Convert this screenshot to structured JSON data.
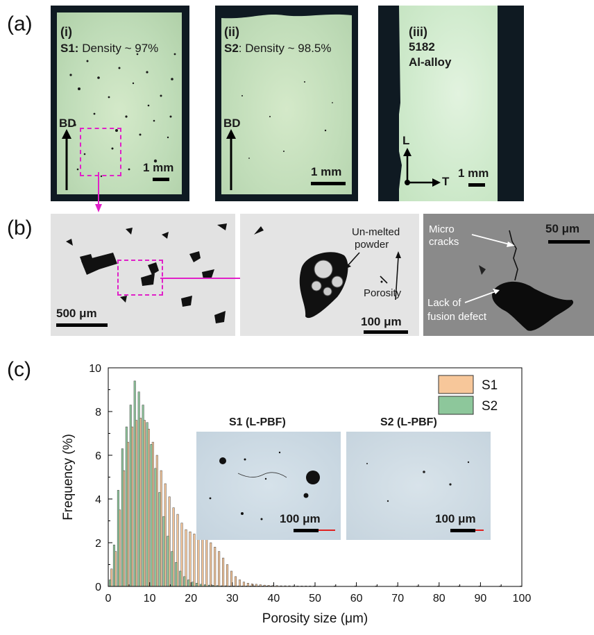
{
  "panel_a": {
    "label": "(a)",
    "img1": {
      "roman": "(i)",
      "sample": "S1:",
      "density": " Density ~ 97%",
      "bd": "BD",
      "scale": "1 mm"
    },
    "img2": {
      "roman": "(ii)",
      "sample": "S2",
      "density": ": Density ~ 98.5%",
      "bd": "BD",
      "scale": "1 mm"
    },
    "img3": {
      "roman": "(iii)",
      "line1": "5182",
      "line2": "Al-alloy",
      "axis_l": "L",
      "axis_t": "T",
      "scale": "1 mm"
    }
  },
  "panel_b": {
    "label": "(b)",
    "img1": {
      "scale": "500 μm"
    },
    "img2": {
      "unmelted": "Un-melted",
      "powder": "powder",
      "porosity": "Porosity",
      "scale": "100 μm"
    },
    "img3": {
      "micro": "Micro",
      "cracks": "cracks",
      "lack": "Lack of",
      "fusion": "fusion defect",
      "scale": "50 μm"
    }
  },
  "panel_c": {
    "label": "(c)",
    "inset1_title": "S1 (L-PBF)",
    "inset2_title": "S2 (L-PBF)",
    "inset_scale": "100 μm"
  },
  "colors": {
    "s1": "#f7c79a",
    "s2": "#8dc79b",
    "magenta": "#e020c8"
  },
  "chart_data": {
    "type": "bar",
    "xlabel": "Porosity size (μm)",
    "ylabel": "Frequency (%)",
    "xlim": [
      0,
      100
    ],
    "ylim": [
      0,
      10
    ],
    "xticks": [
      "0",
      "10",
      "20",
      "30",
      "40",
      "50",
      "60",
      "70",
      "80",
      "90",
      "100"
    ],
    "yticks": [
      "0",
      "2",
      "4",
      "6",
      "8",
      "10"
    ],
    "legend_position": "top-right",
    "series": [
      {
        "name": "S1",
        "color": "#f7c79a",
        "x": [
          1,
          2,
          3,
          4,
          5,
          6,
          7,
          8,
          9,
          10,
          11,
          12,
          13,
          14,
          15,
          16,
          17,
          18,
          19,
          20,
          21,
          22,
          23,
          24,
          25,
          26,
          27,
          28,
          29,
          30,
          31,
          32,
          33,
          34,
          35,
          36,
          37,
          38,
          39,
          40,
          41,
          42,
          43,
          44,
          45,
          46,
          47,
          48,
          49,
          50,
          55,
          60,
          65,
          70,
          75,
          80,
          85,
          90,
          95,
          100
        ],
        "y": [
          0.8,
          1.6,
          3.5,
          5.3,
          6.6,
          7.3,
          7.6,
          7.7,
          7.6,
          7.2,
          6.6,
          6.0,
          5.3,
          4.7,
          4.1,
          3.6,
          3.3,
          2.9,
          2.6,
          2.5,
          2.4,
          2.4,
          2.3,
          2.2,
          2.0,
          1.8,
          1.6,
          1.3,
          1.0,
          0.7,
          0.45,
          0.3,
          0.2,
          0.15,
          0.12,
          0.1,
          0.08,
          0.06,
          0.05,
          0.04,
          0.04,
          0.03,
          0.03,
          0.03,
          0.02,
          0.02,
          0.02,
          0.02,
          0.02,
          0.02,
          0.02,
          0.02,
          0.02,
          0.02,
          0.02,
          0.02,
          0.02,
          0.02,
          0.02,
          0.02
        ]
      },
      {
        "name": "S2",
        "color": "#8dc79b",
        "x": [
          1,
          2,
          3,
          4,
          5,
          6,
          7,
          8,
          9,
          10,
          11,
          12,
          13,
          14,
          15,
          16,
          17,
          18,
          19,
          20,
          21,
          22,
          23,
          24,
          25,
          26,
          27,
          28,
          29,
          30,
          31,
          32,
          33,
          34,
          35,
          36,
          37,
          38,
          39,
          40
        ],
        "y": [
          0.3,
          1.9,
          4.4,
          6.3,
          7.3,
          8.3,
          9.4,
          8.9,
          8.3,
          7.5,
          6.5,
          5.4,
          4.3,
          3.2,
          2.3,
          1.6,
          1.1,
          0.7,
          0.45,
          0.3,
          0.2,
          0.15,
          0.1,
          0.08,
          0.06,
          0.05,
          0.04,
          0.03,
          0.03,
          0.02,
          0.02,
          0.02,
          0.02,
          0.02,
          0.02,
          0.02,
          0.02,
          0.02,
          0.02,
          0.02
        ]
      }
    ]
  }
}
